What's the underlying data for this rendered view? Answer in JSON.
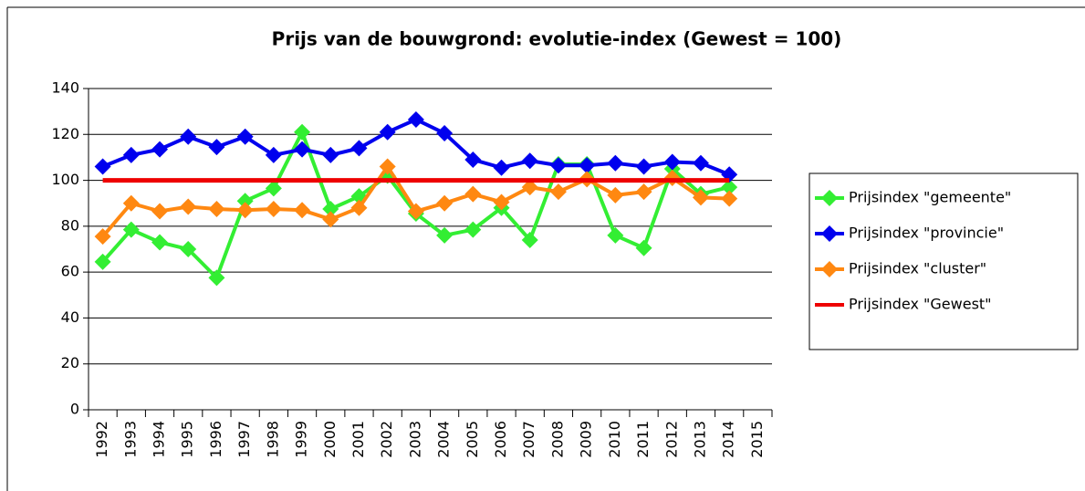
{
  "chart_data": {
    "type": "line",
    "title": "Prijs van de bouwgrond: evolutie-index (Gewest = 100)",
    "categories": [
      "1992",
      "1993",
      "1994",
      "1995",
      "1996",
      "1997",
      "1998",
      "1999",
      "2000",
      "2001",
      "2002",
      "2003",
      "2004",
      "2005",
      "2006",
      "2007",
      "2008",
      "2009",
      "2010",
      "2011",
      "2012",
      "2013",
      "2014",
      "2015"
    ],
    "series": [
      {
        "name": "Prijsindex \"gemeente\"",
        "color": "#33ee33",
        "marker": true,
        "values": [
          64.5,
          78.5,
          73,
          70,
          57.5,
          91,
          96.5,
          121,
          87.5,
          93,
          102,
          85.5,
          76,
          78.5,
          88,
          74,
          107,
          107,
          76,
          70.5,
          105,
          94,
          97,
          null
        ]
      },
      {
        "name": "Prijsindex \"provincie\"",
        "color": "#0000ee",
        "marker": true,
        "values": [
          106,
          111,
          113.5,
          119,
          114.5,
          119,
          111,
          113.5,
          111,
          114,
          121,
          126.5,
          120.5,
          109,
          105.5,
          108.5,
          106.5,
          106.5,
          107.5,
          106,
          108,
          107.5,
          102.5,
          null
        ]
      },
      {
        "name": "Prijsindex \"cluster\"",
        "color": "#ff8811",
        "marker": true,
        "values": [
          75.5,
          90,
          86.5,
          88.5,
          87.5,
          87,
          87.5,
          87,
          83,
          88,
          106,
          86.5,
          90,
          94,
          90.5,
          97,
          95,
          100.5,
          93.5,
          95,
          101,
          92.5,
          92,
          null
        ]
      },
      {
        "name": "Prijsindex \"Gewest\"",
        "color": "#ee0000",
        "marker": false,
        "values": [
          100,
          100,
          100,
          100,
          100,
          100,
          100,
          100,
          100,
          100,
          100,
          100,
          100,
          100,
          100,
          100,
          100,
          100,
          100,
          100,
          100,
          100,
          100,
          null
        ]
      }
    ],
    "ylim": [
      0,
      140
    ],
    "yticks": [
      0,
      20,
      40,
      60,
      80,
      100,
      120,
      140
    ],
    "grid": true,
    "legend": "right"
  }
}
